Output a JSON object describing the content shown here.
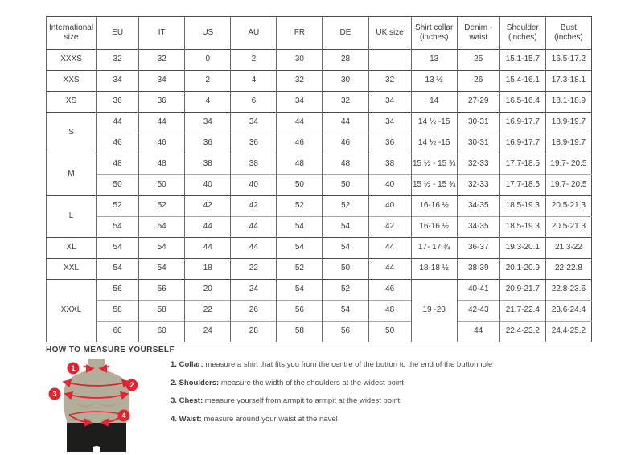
{
  "table": {
    "headers": [
      "International size",
      "EU",
      "IT",
      "US",
      "AU",
      "FR",
      "DE",
      "UK size",
      "Shirt collar (inches)",
      "Denim - waist",
      "Shoulder (inches)",
      "Bust (inches)"
    ],
    "rows": [
      {
        "group_start": true,
        "cells": [
          "XXXS",
          "32",
          "32",
          "0",
          "2",
          "30",
          "28",
          "",
          "13",
          "25",
          "15.1-15.7",
          "16.5-17.2"
        ]
      },
      {
        "group_start": true,
        "cells": [
          "XXS",
          "34",
          "34",
          "2",
          "4",
          "32",
          "30",
          "32",
          "13 ½",
          "26",
          "15.4-16.1",
          "17.3-18.1"
        ]
      },
      {
        "group_start": true,
        "cells": [
          "XS",
          "36",
          "36",
          "4",
          "6",
          "34",
          "32",
          "34",
          "14",
          "27-29",
          "16.5-16.4",
          "18.1-18.9"
        ]
      },
      {
        "group_start": true,
        "cells": [
          {
            "v": "S",
            "rs": 2
          },
          "44",
          "44",
          "34",
          "34",
          "44",
          "44",
          "34",
          "14 ½ -15",
          "30-31",
          "16.9-17.7",
          "18.9-19.7"
        ]
      },
      {
        "group_start": false,
        "cells": [
          "46",
          "46",
          "36",
          "36",
          "46",
          "46",
          "36",
          "14 ½ -15",
          "30-31",
          "16.9-17.7",
          "18.9-19.7"
        ]
      },
      {
        "group_start": true,
        "cells": [
          {
            "v": "M",
            "rs": 2
          },
          "48",
          "48",
          "38",
          "38",
          "48",
          "48",
          "38",
          "15 ½ - 15 ¾",
          "32-33",
          "17.7-18.5",
          "19.7- 20.5"
        ]
      },
      {
        "group_start": false,
        "cells": [
          "50",
          "50",
          "40",
          "40",
          "50",
          "50",
          "40",
          "15 ½ - 15 ¾",
          "32-33",
          "17.7-18.5",
          "19.7- 20.5"
        ]
      },
      {
        "group_start": true,
        "cells": [
          {
            "v": "L",
            "rs": 2
          },
          "52",
          "52",
          "42",
          "42",
          "52",
          "52",
          "40",
          "16-16 ½",
          "34-35",
          "18.5-19.3",
          "20.5-21.3"
        ]
      },
      {
        "group_start": false,
        "cells": [
          "54",
          "54",
          "44",
          "44",
          "54",
          "54",
          "42",
          "16-16 ½",
          "34-35",
          "18.5-19.3",
          "20.5-21.3"
        ]
      },
      {
        "group_start": true,
        "cells": [
          "XL",
          "54",
          "54",
          "44",
          "44",
          "54",
          "54",
          "44",
          "17- 17 ¾",
          "36-37",
          "19.3-20.1",
          "21.3-22"
        ]
      },
      {
        "group_start": true,
        "cells": [
          "XXL",
          "54",
          "54",
          "18",
          "22",
          "52",
          "50",
          "44",
          "18-18 ½",
          "38-39",
          "20.1-20.9",
          "22-22.8"
        ]
      },
      {
        "group_start": true,
        "cells": [
          {
            "v": "XXXL",
            "rs": 3
          },
          "56",
          "56",
          "20",
          "24",
          "54",
          "52",
          "46",
          {
            "v": "19 -20",
            "rs": 3
          },
          "40-41",
          "20.9-21.7",
          "22.8-23.6"
        ]
      },
      {
        "group_start": false,
        "cells": [
          "58",
          "58",
          "22",
          "26",
          "56",
          "54",
          "48",
          "42-43",
          "21.7-22.4",
          "23.6-24.4"
        ]
      },
      {
        "group_start": false,
        "cells": [
          "60",
          "60",
          "24",
          "28",
          "58",
          "56",
          "50",
          "44",
          "22.4-23.2",
          "24.4-25.2"
        ]
      }
    ]
  },
  "measure": {
    "title": "HOW TO MEASURE YOURSELF",
    "items": [
      {
        "num": "1.",
        "term": "Collar:",
        "text": "measure a shirt that fits you from the centre of the button to the end of the buttonhole"
      },
      {
        "num": "2.",
        "term": "Shoulders:",
        "text": "measure the width of the shoulders at the widest point"
      },
      {
        "num": "3.",
        "term": "Chest:",
        "text": "measure yourself from armpit to armpit at the widest point"
      },
      {
        "num": "4.",
        "term": "Waist:",
        "text": "measure around your waist at the navel"
      }
    ],
    "figure_markers": [
      "1",
      "2",
      "3",
      "4"
    ]
  },
  "colors": {
    "accent_red": "#e1242f",
    "mannequin": "#b3ae9a",
    "mannequin_shade": "#a29d88",
    "shorts": "#1d1d1b",
    "border_dark": "#4c4c4c",
    "border_light": "#a6a6a6",
    "text": "#3b3b3b"
  }
}
